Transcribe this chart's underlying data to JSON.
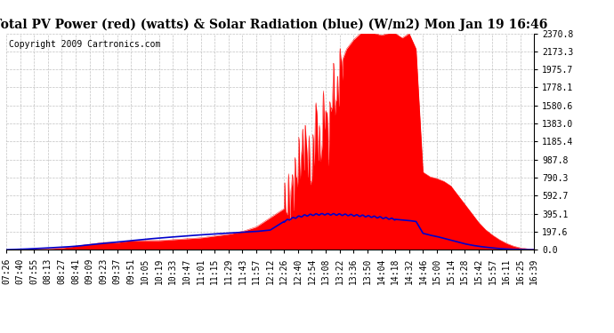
{
  "title": "Total PV Power (red) (watts) & Solar Radiation (blue) (W/m2) Mon Jan 19 16:46",
  "copyright": "Copyright 2009 Cartronics.com",
  "background_color": "#ffffff",
  "plot_bg_color": "#ffffff",
  "grid_color": "#bbbbbb",
  "ymax": 2370.8,
  "ymin": 0.0,
  "yticks": [
    0.0,
    197.6,
    395.1,
    592.7,
    790.3,
    987.8,
    1185.4,
    1383.0,
    1580.6,
    1778.1,
    1975.7,
    2173.3,
    2370.8
  ],
  "x_labels": [
    "07:26",
    "07:40",
    "07:55",
    "08:13",
    "08:27",
    "08:41",
    "09:09",
    "09:23",
    "09:37",
    "09:51",
    "10:05",
    "10:19",
    "10:33",
    "10:47",
    "11:01",
    "11:15",
    "11:29",
    "11:43",
    "11:57",
    "12:12",
    "12:26",
    "12:40",
    "12:54",
    "13:08",
    "13:22",
    "13:36",
    "13:50",
    "14:04",
    "14:18",
    "14:32",
    "14:46",
    "15:00",
    "15:14",
    "15:28",
    "15:42",
    "15:57",
    "16:11",
    "16:25",
    "16:39"
  ],
  "red_color": "#ff0000",
  "blue_color": "#0000cc",
  "title_fontsize": 10,
  "tick_fontsize": 7,
  "copyright_fontsize": 7
}
